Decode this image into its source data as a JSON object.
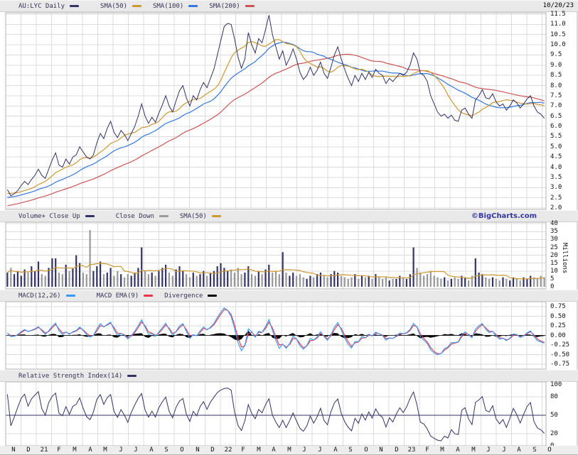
{
  "header": {
    "symbol_series": "AU:LYC Daily",
    "date": "10/20/23"
  },
  "branding": "©BigCharts.com",
  "legends": {
    "price": [
      {
        "label": "AU:LYC Daily",
        "color": "#333366"
      },
      {
        "label": "SMA(50)",
        "color": "#cc9933"
      },
      {
        "label": "SMA(100)",
        "color": "#3377dd"
      },
      {
        "label": "SMA(200)",
        "color": "#cc5555"
      }
    ],
    "volume": [
      {
        "label": "Volume+ Close Up",
        "color": "#333366"
      },
      {
        "label": "Close Down",
        "color": "#999999"
      },
      {
        "label": "SMA(50)",
        "color": "#cc9933"
      }
    ],
    "macd": [
      {
        "label": "MACD(12,26)",
        "color": "#3399ff"
      },
      {
        "label": "MACD EMA(9)",
        "color": "#ee3344"
      },
      {
        "label": "Divergence",
        "color": "#000000"
      }
    ],
    "rsi": [
      {
        "label": "Relative Strength Index(14)",
        "color": "#333366"
      }
    ]
  },
  "axes": {
    "price": {
      "labels": [
        "11.5",
        "11.0",
        "10.5",
        "10.0",
        "9.5",
        "9.0",
        "8.5",
        "8.0",
        "7.5",
        "7.0",
        "6.5",
        "6.0",
        "5.5",
        "5.0",
        "4.5",
        "4.0",
        "3.5",
        "3.0",
        "2.5",
        "2.0"
      ]
    },
    "volume": {
      "labels": [
        "40",
        "35",
        "30",
        "25",
        "20",
        "15",
        "10",
        "5",
        "0"
      ],
      "unit": "Millions"
    },
    "macd": {
      "labels": [
        "0.75",
        "0.50",
        "0.25",
        "0.00",
        "-0.25",
        "-0.50",
        "-0.75"
      ]
    },
    "rsi": {
      "labels": [
        "100",
        "80",
        "50",
        "20",
        "0"
      ]
    }
  },
  "x_axis": {
    "labels": [
      "N",
      "D",
      "21",
      "F",
      "M",
      "A",
      "M",
      "J",
      "J",
      "A",
      "S",
      "O",
      "N",
      "D",
      "22",
      "F",
      "M",
      "A",
      "M",
      "J",
      "J",
      "A",
      "S",
      "O",
      "N",
      "D",
      "23",
      "F",
      "M",
      "A",
      "M",
      "J",
      "J",
      "A",
      "S",
      "O"
    ]
  },
  "chart_data": [
    {
      "type": "line",
      "name": "price",
      "title": "AU:LYC Daily",
      "date_range": "Nov 2020 - Oct 2023",
      "sampling": "weekly samples",
      "ylim": [
        2.0,
        11.5
      ],
      "grid": true,
      "series": [
        {
          "name": "AU:LYC Daily",
          "color": "#333366",
          "values": [
            2.9,
            2.6,
            2.7,
            2.85,
            3.1,
            3.3,
            3.15,
            3.4,
            3.6,
            3.9,
            3.6,
            3.45,
            3.9,
            4.35,
            4.7,
            4.1,
            4.0,
            4.4,
            4.15,
            4.5,
            4.6,
            5.0,
            4.75,
            4.5,
            4.4,
            4.6,
            5.2,
            5.65,
            5.4,
            5.9,
            6.25,
            5.7,
            5.45,
            5.8,
            5.6,
            5.3,
            5.65,
            6.0,
            6.5,
            7.1,
            6.5,
            6.15,
            6.45,
            6.2,
            6.65,
            7.05,
            7.5,
            7.0,
            6.7,
            7.25,
            7.75,
            8.0,
            7.4,
            7.0,
            7.5,
            7.3,
            7.8,
            8.15,
            7.9,
            8.35,
            8.8,
            9.5,
            10.2,
            10.9,
            11.05,
            11.0,
            10.3,
            9.4,
            8.85,
            9.3,
            10.6,
            10.0,
            9.6,
            10.3,
            10.1,
            10.75,
            11.45,
            10.5,
            9.9,
            9.3,
            9.7,
            9.0,
            9.35,
            9.8,
            9.3,
            8.65,
            8.3,
            8.5,
            8.9,
            8.5,
            8.75,
            9.15,
            8.6,
            8.35,
            8.9,
            9.5,
            9.9,
            9.3,
            8.8,
            8.35,
            8.0,
            8.5,
            8.2,
            8.6,
            8.3,
            8.65,
            8.4,
            8.8,
            8.6,
            8.5,
            8.1,
            8.35,
            8.2,
            8.4,
            8.6,
            8.5,
            8.65,
            9.0,
            9.6,
            9.3,
            8.6,
            8.5,
            8.2,
            7.5,
            7.1,
            6.7,
            6.5,
            6.6,
            6.4,
            6.55,
            6.3,
            6.25,
            6.8,
            6.9,
            6.6,
            6.4,
            7.3,
            7.5,
            7.8,
            7.4,
            7.35,
            7.6,
            7.2,
            7.0,
            7.1,
            6.8,
            7.0,
            7.3,
            7.15,
            6.9,
            7.1,
            7.35,
            7.5,
            7.0,
            6.7,
            6.6,
            6.4
          ]
        },
        {
          "name": "SMA(50)",
          "color": "#cc9933",
          "derived": "sma",
          "window_weeks": 10
        },
        {
          "name": "SMA(100)",
          "color": "#3377dd",
          "derived": "sma",
          "window_weeks": 20
        },
        {
          "name": "SMA(200)",
          "color": "#cc5555",
          "derived": "sma",
          "window_weeks": 40
        }
      ],
      "preroll": [
        1.3,
        1.35,
        1.3,
        1.4,
        1.45,
        1.5,
        1.55,
        1.5,
        1.6,
        1.65,
        1.7,
        1.75,
        1.7,
        1.8,
        1.85,
        1.9,
        1.95,
        2.0,
        2.05,
        2.0,
        2.1,
        2.15,
        2.2,
        2.25,
        2.2,
        2.3,
        2.35,
        2.4,
        2.45,
        2.4,
        2.5,
        2.55,
        2.6,
        2.65,
        2.6,
        2.7,
        2.75,
        2.8,
        2.75,
        2.85
      ]
    },
    {
      "type": "bar",
      "name": "volume",
      "ylabel": "Millions",
      "ylim": [
        0,
        40
      ],
      "up_color": "#333366",
      "down_color": "#999999",
      "sma_color": "#cc9933",
      "sma_window_weeks": 10,
      "values": [
        9,
        12,
        8,
        10,
        7,
        11,
        9,
        13,
        10,
        16,
        8,
        7,
        12,
        18,
        18,
        9,
        8,
        14,
        10,
        12,
        20,
        15,
        9,
        8,
        36,
        10,
        13,
        16,
        8,
        9,
        12,
        7,
        10,
        8,
        6,
        8,
        7,
        9,
        12,
        25,
        10,
        8,
        9,
        7,
        10,
        12,
        14,
        9,
        7,
        11,
        13,
        10,
        8,
        6,
        9,
        7,
        8,
        10,
        7,
        9,
        10,
        13,
        15,
        12,
        10,
        11,
        9,
        12,
        8,
        9,
        13,
        8,
        7,
        10,
        8,
        11,
        14,
        9,
        10,
        8,
        22,
        9,
        7,
        9,
        7,
        8,
        6,
        5,
        7,
        6,
        8,
        9,
        7,
        6,
        8,
        10,
        9,
        7,
        6,
        5,
        6,
        8,
        5,
        7,
        6,
        7,
        5,
        8,
        6,
        5,
        6,
        4,
        5,
        5,
        7,
        6,
        5,
        8,
        25,
        12,
        9,
        7,
        8,
        10,
        7,
        6,
        5,
        6,
        4,
        5,
        6,
        5,
        7,
        6,
        4,
        7,
        18,
        9,
        8,
        6,
        5,
        6,
        5,
        4,
        6,
        5,
        4,
        6,
        5,
        4,
        6,
        5,
        7,
        6,
        5,
        7,
        6
      ]
    },
    {
      "type": "line",
      "name": "macd",
      "ylim": [
        -0.75,
        0.75
      ],
      "params": {
        "fast": 12,
        "slow": 26,
        "signal": 9
      },
      "colors": {
        "macd": "#3399ff",
        "signal": "#ee3344",
        "divergence": "#000000"
      },
      "derived_from": "price close series"
    },
    {
      "type": "line",
      "name": "rsi",
      "ylim": [
        0,
        100
      ],
      "period": 14,
      "color": "#333366",
      "centerline": 50,
      "derived_from": "price close series"
    }
  ]
}
